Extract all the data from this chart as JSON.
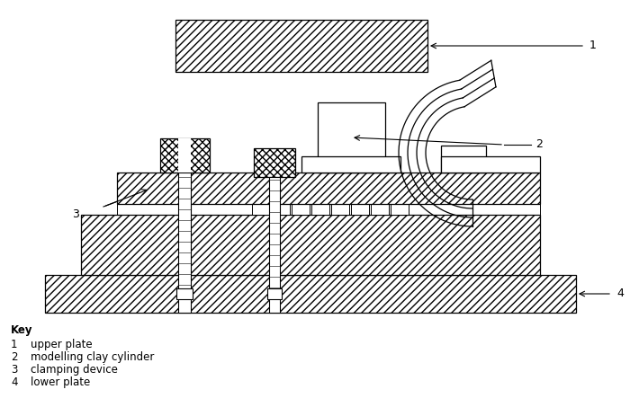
{
  "background_color": "#ffffff",
  "key_title": "Key",
  "key_items": [
    {
      "num": "1",
      "label": "upper plate"
    },
    {
      "num": "2",
      "label": "modelling clay cylinder"
    },
    {
      "num": "3",
      "label": "clamping device"
    },
    {
      "num": "4",
      "label": "lower plate"
    }
  ]
}
